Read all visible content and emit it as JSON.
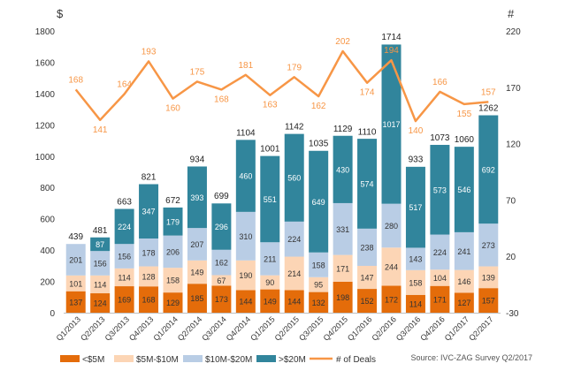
{
  "chart_data": {
    "type": "bar",
    "stacked": true,
    "categories": [
      "Q1/2013",
      "Q2/2013",
      "Q3/2013",
      "Q4/2013",
      "Q1/2014",
      "Q2/2014",
      "Q3/2014",
      "Q4/2014",
      "Q1/2015",
      "Q2/2015",
      "Q3/2015",
      "Q4/2015",
      "Q1/2016",
      "Q2/2016",
      "Q3/2016",
      "Q4/2016",
      "Q1/2017",
      "Q2/2017"
    ],
    "series": [
      {
        "name": "<$5M",
        "color": "#e46c0a",
        "values": [
          137,
          124,
          169,
          168,
          129,
          185,
          173,
          144,
          149,
          144,
          132,
          198,
          152,
          172,
          114,
          171,
          127,
          157
        ]
      },
      {
        "name": "$5M-$10M",
        "color": "#fcd5b5",
        "values": [
          101,
          114,
          114,
          128,
          158,
          149,
          67,
          190,
          90,
          214,
          95,
          171,
          147,
          244,
          158,
          104,
          146,
          139
        ]
      },
      {
        "name": "$10M-$20M",
        "color": "#b9cde5",
        "values": [
          201,
          156,
          156,
          178,
          206,
          207,
          162,
          310,
          211,
          224,
          158,
          331,
          238,
          280,
          143,
          224,
          241,
          273
        ]
      },
      {
        "name": ">$20M",
        "color": "#31859c",
        "values": [
          0,
          87,
          224,
          347,
          179,
          393,
          296,
          460,
          551,
          560,
          649,
          430,
          574,
          1017,
          517,
          573,
          546,
          692
        ]
      }
    ],
    "totals": [
      439,
      481,
      663,
      821,
      672,
      934,
      699,
      1104,
      1001,
      1142,
      1035,
      1129,
      1110,
      1714,
      933,
      1073,
      1060,
      1262
    ],
    "line_series": {
      "name": "# of Deals",
      "color": "#f79646",
      "axis": "right",
      "values": [
        168,
        141,
        164,
        193,
        160,
        175,
        168,
        181,
        163,
        179,
        162,
        202,
        174,
        194,
        140,
        166,
        155,
        157
      ]
    },
    "y_left": {
      "label": "$",
      "min": 0,
      "max": 1800,
      "ticks": [
        0,
        200,
        400,
        600,
        800,
        1000,
        1200,
        1400,
        1600,
        1800
      ]
    },
    "y_right": {
      "label": "#",
      "min": -30,
      "max": 220,
      "ticks": [
        -30,
        20,
        70,
        120,
        170,
        220
      ]
    },
    "grid": false,
    "legend_position": "bottom",
    "source": "Source: IVC-ZAG Survey Q2/2017"
  }
}
